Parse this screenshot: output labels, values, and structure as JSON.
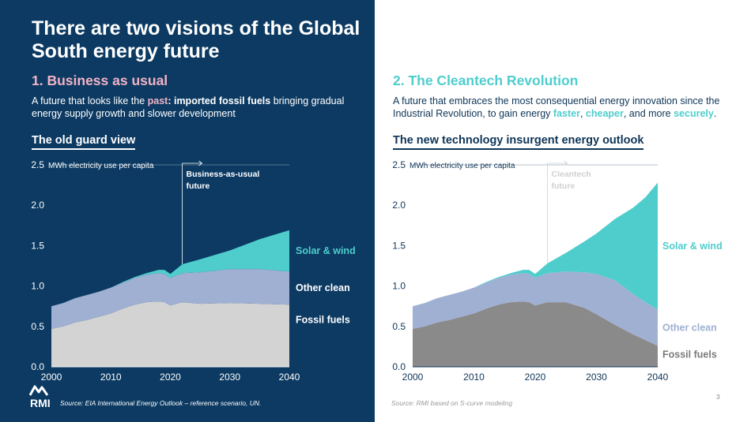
{
  "title": "There are two visions of the Global South energy future",
  "vision1": {
    "title": "1. Business as usual",
    "desc_pre": "A future that looks like the ",
    "desc_hl1": "past",
    "desc_hl_sep": ": ",
    "desc_hl2": "imported fossil fuels",
    "desc_post": " bringing gradual energy supply growth and slower development",
    "chart_title": "The old guard view"
  },
  "vision2": {
    "title": "2. The Cleantech Revolution",
    "desc_pre": "A future that embraces the most consequential energy innovation since the Industrial Revolution, to gain energy ",
    "desc_w1": "faster",
    "desc_c1": ", ",
    "desc_w2": "cheaper",
    "desc_c2": ", and more ",
    "desc_w3": "securely",
    "desc_end": ".",
    "chart_title": "The new technology insurgent energy outlook"
  },
  "logo": {
    "text": "RMI"
  },
  "page_number": "3",
  "colors": {
    "navy": "#0c3a62",
    "pink": "#f2b3c6",
    "teal": "#4fcdcd",
    "other_clean": "#9fb0d3",
    "fossil_left": "#d3d3d3",
    "fossil_right": "#8a8a8a"
  },
  "chart_data": [
    {
      "type": "area",
      "stacked": true,
      "title": "The old guard view",
      "ylabel": "MWh electricity use per capita",
      "ylim": [
        0,
        2.5
      ],
      "yticks": [
        "0.0",
        "0.5",
        "1.0",
        "1.5",
        "2.0",
        "2.5"
      ],
      "xticks": [
        "2000",
        "2010",
        "2020",
        "2030",
        "2040"
      ],
      "xlim": [
        2000,
        2040
      ],
      "marker": {
        "x": 2022,
        "label_line1": "Business-as-usual",
        "label_line2": "future"
      },
      "x": [
        2000,
        2002,
        2004,
        2006,
        2008,
        2010,
        2012,
        2014,
        2016,
        2018,
        2019,
        2020,
        2022,
        2025,
        2030,
        2035,
        2040
      ],
      "series": [
        {
          "name": "Fossil fuels",
          "values": [
            0.47,
            0.5,
            0.55,
            0.58,
            0.62,
            0.66,
            0.72,
            0.77,
            0.8,
            0.81,
            0.8,
            0.76,
            0.8,
            0.78,
            0.79,
            0.78,
            0.77
          ]
        },
        {
          "name": "Other clean",
          "values": [
            0.28,
            0.29,
            0.3,
            0.31,
            0.31,
            0.32,
            0.32,
            0.33,
            0.34,
            0.35,
            0.35,
            0.34,
            0.36,
            0.39,
            0.42,
            0.43,
            0.41
          ]
        },
        {
          "name": "Solar & wind",
          "values": [
            0.0,
            0.0,
            0.0,
            0.0,
            0.0,
            0.0,
            0.01,
            0.01,
            0.02,
            0.04,
            0.05,
            0.05,
            0.11,
            0.16,
            0.23,
            0.37,
            0.51
          ]
        }
      ],
      "source": "Source: EIA International Energy Outlook – reference scenario, UN."
    },
    {
      "type": "area",
      "stacked": true,
      "title": "The new technology insurgent energy outlook",
      "ylabel": "MWh electricity use per capita",
      "ylim": [
        0,
        2.5
      ],
      "yticks": [
        "0.0",
        "0.5",
        "1.0",
        "1.5",
        "2.0",
        "2.5"
      ],
      "xticks": [
        "2000",
        "2010",
        "2020",
        "2030",
        "2040"
      ],
      "xlim": [
        2000,
        2040
      ],
      "marker": {
        "x": 2022,
        "label_line1": "Cleantech",
        "label_line2": "future"
      },
      "x": [
        2000,
        2002,
        2004,
        2006,
        2008,
        2010,
        2012,
        2014,
        2016,
        2018,
        2019,
        2020,
        2022,
        2025,
        2028,
        2030,
        2033,
        2036,
        2038,
        2040
      ],
      "series": [
        {
          "name": "Fossil fuels",
          "values": [
            0.47,
            0.5,
            0.55,
            0.58,
            0.62,
            0.66,
            0.72,
            0.77,
            0.8,
            0.81,
            0.8,
            0.76,
            0.8,
            0.8,
            0.73,
            0.65,
            0.52,
            0.4,
            0.33,
            0.26
          ]
        },
        {
          "name": "Other clean",
          "values": [
            0.28,
            0.29,
            0.3,
            0.31,
            0.31,
            0.32,
            0.32,
            0.33,
            0.34,
            0.35,
            0.35,
            0.34,
            0.36,
            0.38,
            0.44,
            0.5,
            0.55,
            0.5,
            0.47,
            0.45
          ]
        },
        {
          "name": "Solar & wind",
          "values": [
            0.0,
            0.0,
            0.0,
            0.0,
            0.0,
            0.0,
            0.01,
            0.01,
            0.02,
            0.04,
            0.05,
            0.05,
            0.12,
            0.23,
            0.38,
            0.5,
            0.76,
            1.07,
            1.3,
            1.57
          ]
        }
      ],
      "source": "Source: RMI based on S-curve modeling"
    }
  ]
}
